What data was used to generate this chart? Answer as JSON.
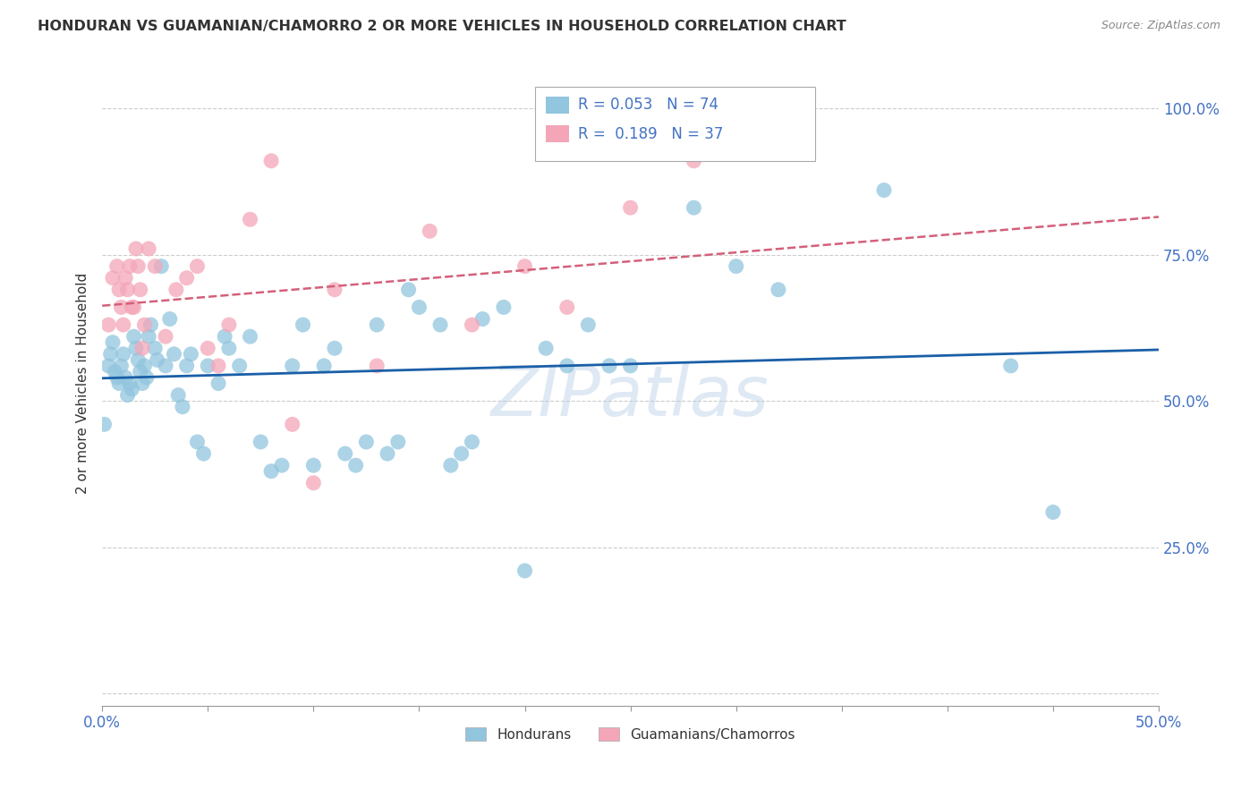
{
  "title": "HONDURAN VS GUAMANIAN/CHAMORRO 2 OR MORE VEHICLES IN HOUSEHOLD CORRELATION CHART",
  "source": "Source: ZipAtlas.com",
  "ylabel": "2 or more Vehicles in Household",
  "y_tick_labels": [
    "",
    "25.0%",
    "50.0%",
    "75.0%",
    "100.0%"
  ],
  "y_tick_positions": [
    0.0,
    0.25,
    0.5,
    0.75,
    1.0
  ],
  "x_range": [
    0.0,
    0.5
  ],
  "y_range": [
    -0.02,
    1.08
  ],
  "watermark": "ZIPatlas",
  "legend_label1": "Hondurans",
  "legend_label2": "Guamanians/Chamorros",
  "r1": 0.053,
  "n1": 74,
  "r2": 0.189,
  "n2": 37,
  "color_blue": "#92c5de",
  "color_pink": "#f4a6b8",
  "line_color_blue": "#1a5fa8",
  "line_color_pink": "#d4607a",
  "background": "#ffffff",
  "grid_color": "#cccccc",
  "title_color": "#333333",
  "axis_label_color": "#4472C4",
  "blue_scatter_x": [
    0.001,
    0.003,
    0.004,
    0.005,
    0.006,
    0.007,
    0.008,
    0.009,
    0.01,
    0.011,
    0.012,
    0.013,
    0.014,
    0.015,
    0.016,
    0.017,
    0.018,
    0.019,
    0.02,
    0.021,
    0.022,
    0.023,
    0.025,
    0.026,
    0.028,
    0.03,
    0.032,
    0.034,
    0.036,
    0.038,
    0.04,
    0.042,
    0.045,
    0.048,
    0.05,
    0.055,
    0.058,
    0.06,
    0.065,
    0.07,
    0.075,
    0.08,
    0.085,
    0.09,
    0.095,
    0.1,
    0.105,
    0.11,
    0.115,
    0.12,
    0.125,
    0.13,
    0.135,
    0.14,
    0.145,
    0.15,
    0.16,
    0.165,
    0.17,
    0.175,
    0.18,
    0.19,
    0.2,
    0.21,
    0.22,
    0.23,
    0.24,
    0.25,
    0.28,
    0.3,
    0.32,
    0.37,
    0.43,
    0.45
  ],
  "blue_scatter_y": [
    0.46,
    0.56,
    0.58,
    0.6,
    0.55,
    0.54,
    0.53,
    0.56,
    0.58,
    0.54,
    0.51,
    0.53,
    0.52,
    0.61,
    0.59,
    0.57,
    0.55,
    0.53,
    0.56,
    0.54,
    0.61,
    0.63,
    0.59,
    0.57,
    0.73,
    0.56,
    0.64,
    0.58,
    0.51,
    0.49,
    0.56,
    0.58,
    0.43,
    0.41,
    0.56,
    0.53,
    0.61,
    0.59,
    0.56,
    0.61,
    0.43,
    0.38,
    0.39,
    0.56,
    0.63,
    0.39,
    0.56,
    0.59,
    0.41,
    0.39,
    0.43,
    0.63,
    0.41,
    0.43,
    0.69,
    0.66,
    0.63,
    0.39,
    0.41,
    0.43,
    0.64,
    0.66,
    0.21,
    0.59,
    0.56,
    0.63,
    0.56,
    0.56,
    0.83,
    0.73,
    0.69,
    0.86,
    0.56,
    0.31
  ],
  "pink_scatter_x": [
    0.003,
    0.005,
    0.007,
    0.008,
    0.009,
    0.01,
    0.011,
    0.012,
    0.013,
    0.014,
    0.015,
    0.016,
    0.017,
    0.018,
    0.019,
    0.02,
    0.022,
    0.025,
    0.03,
    0.035,
    0.04,
    0.045,
    0.05,
    0.055,
    0.06,
    0.07,
    0.08,
    0.09,
    0.1,
    0.11,
    0.13,
    0.155,
    0.175,
    0.2,
    0.22,
    0.25,
    0.28
  ],
  "pink_scatter_y": [
    0.63,
    0.71,
    0.73,
    0.69,
    0.66,
    0.63,
    0.71,
    0.69,
    0.73,
    0.66,
    0.66,
    0.76,
    0.73,
    0.69,
    0.59,
    0.63,
    0.76,
    0.73,
    0.61,
    0.69,
    0.71,
    0.73,
    0.59,
    0.56,
    0.63,
    0.81,
    0.91,
    0.46,
    0.36,
    0.69,
    0.56,
    0.79,
    0.63,
    0.73,
    0.66,
    0.83,
    0.91
  ]
}
